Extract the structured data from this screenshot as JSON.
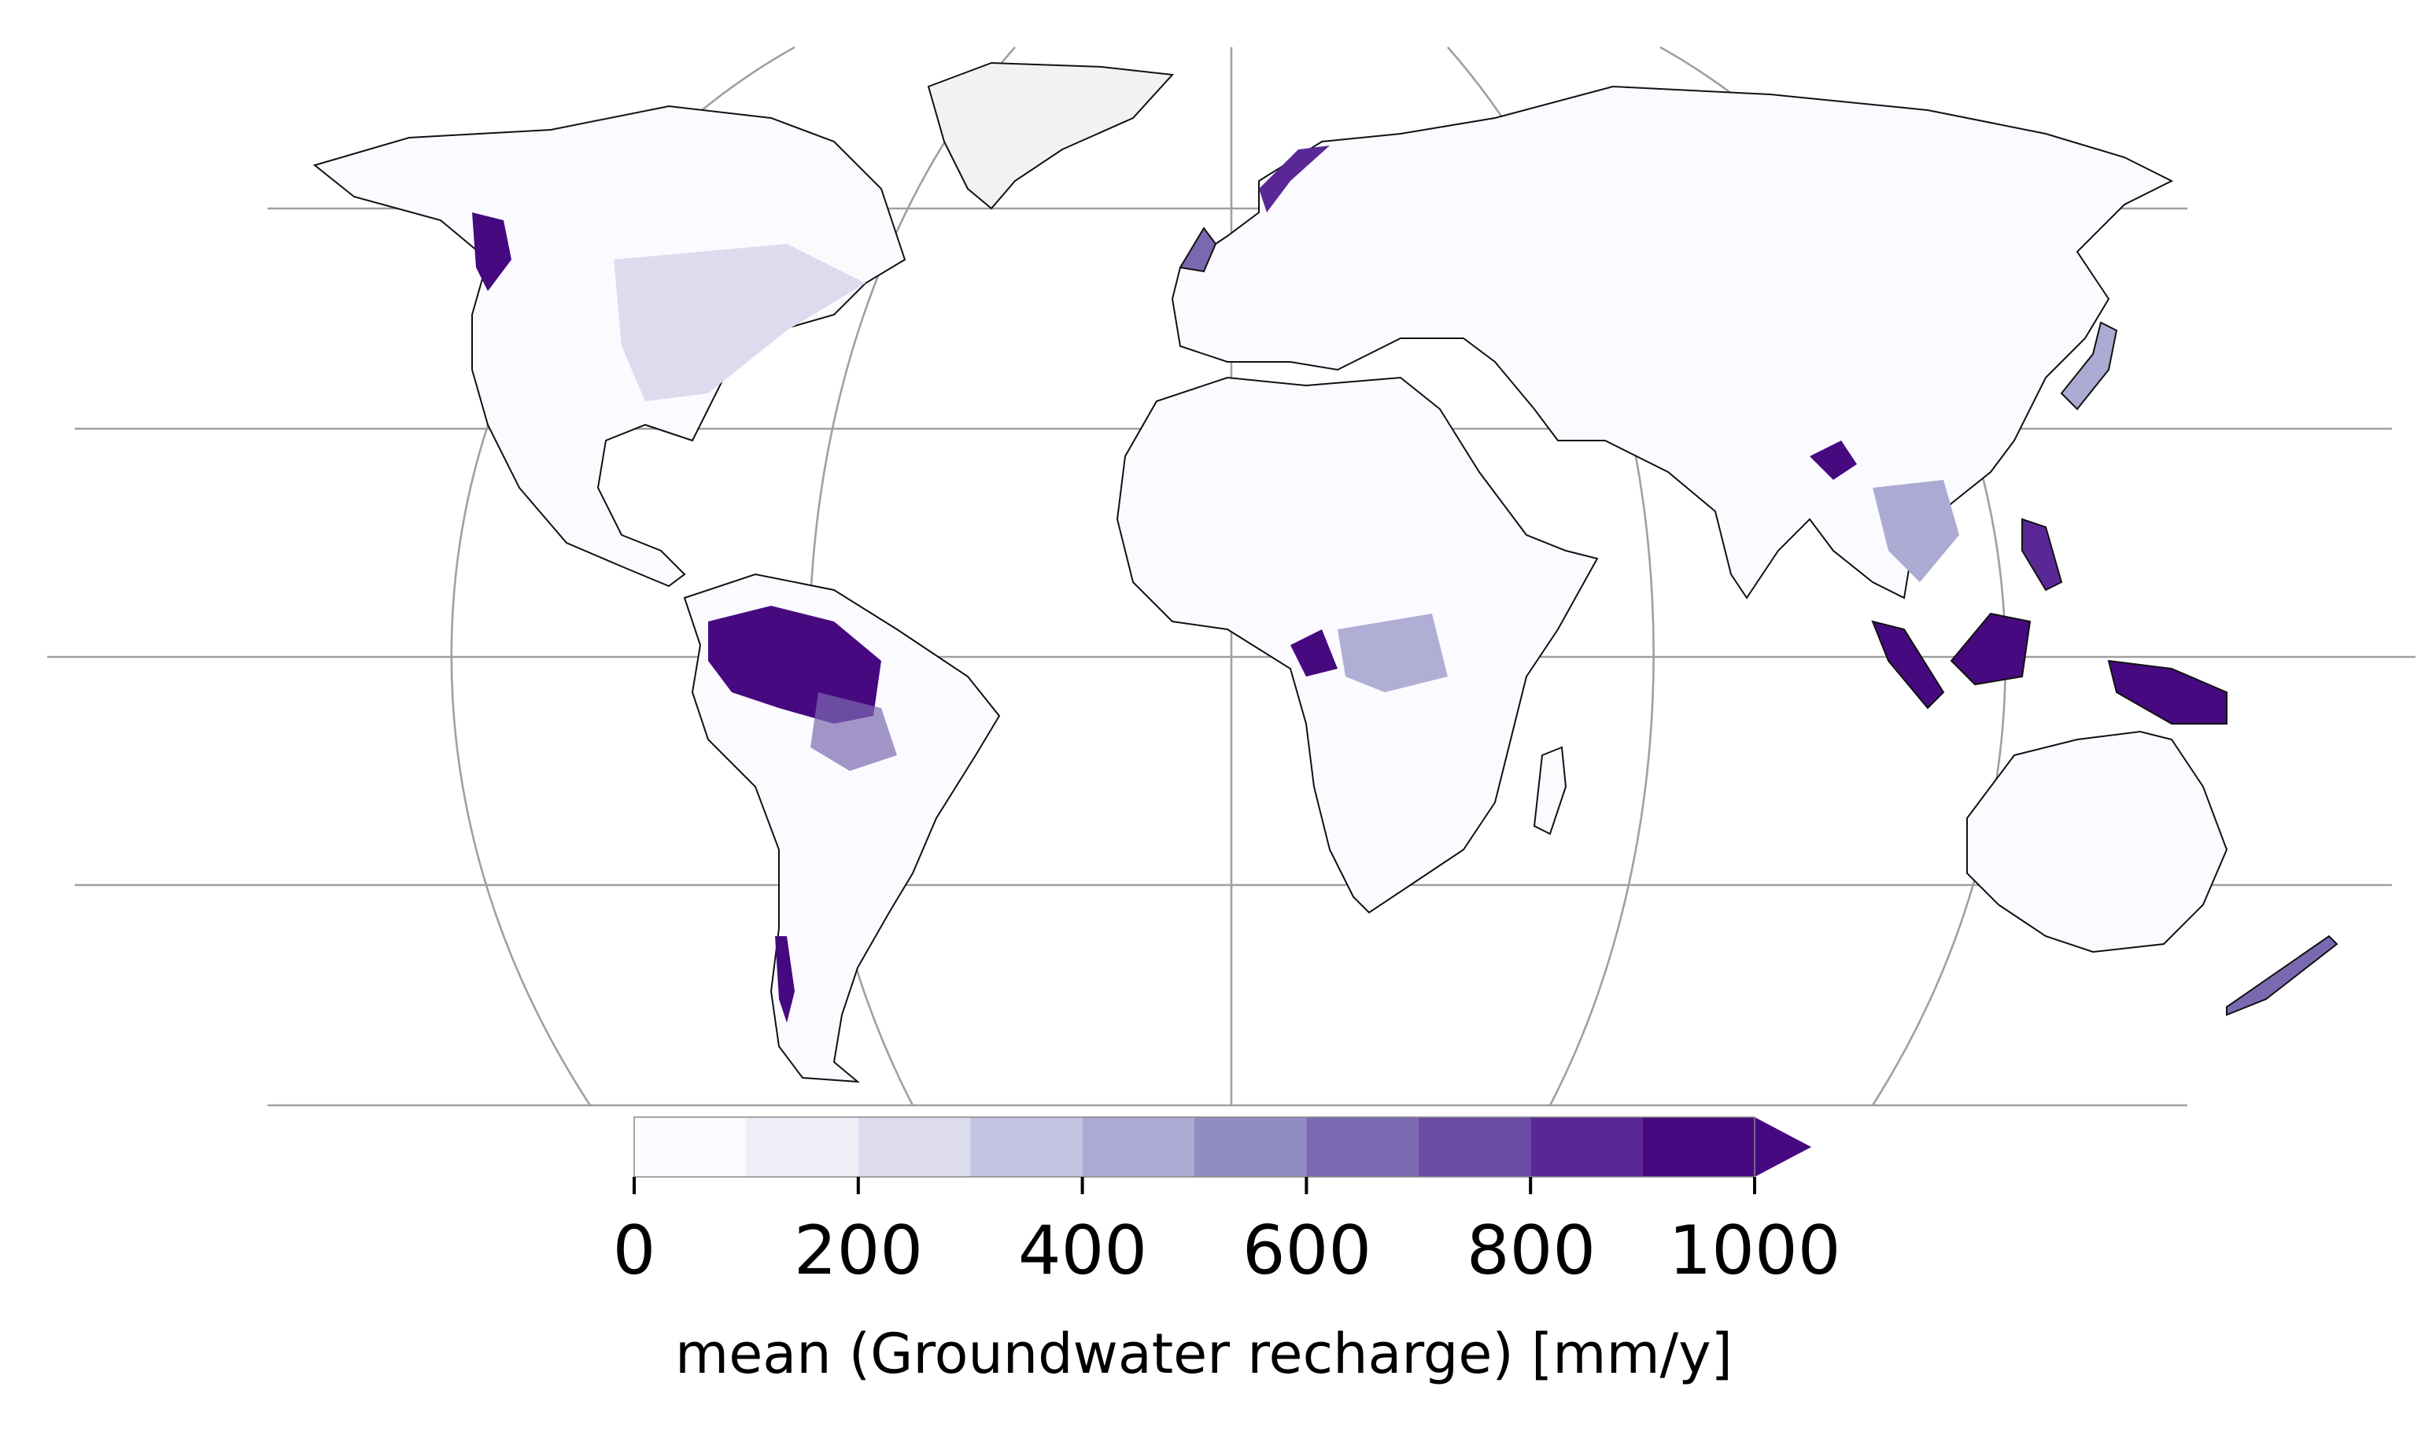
{
  "map": {
    "variable_label": "mean (Groundwater recharge) [mm/y]",
    "projection": "Robinson",
    "colormap": "Purples",
    "extend": "max",
    "colorbar": {
      "ticks": [
        "0",
        "200",
        "400",
        "600",
        "800",
        "1000"
      ],
      "bins": [
        0,
        100,
        200,
        300,
        400,
        500,
        600,
        700,
        800,
        900,
        1000
      ],
      "colors": [
        "#fbfaff",
        "#efedf6",
        "#dddbee",
        "#c4c4e2",
        "#abaad2",
        "#918dc3",
        "#7a69b1",
        "#6b4ba4",
        "#5a2896",
        "#46097f"
      ]
    }
  }
}
